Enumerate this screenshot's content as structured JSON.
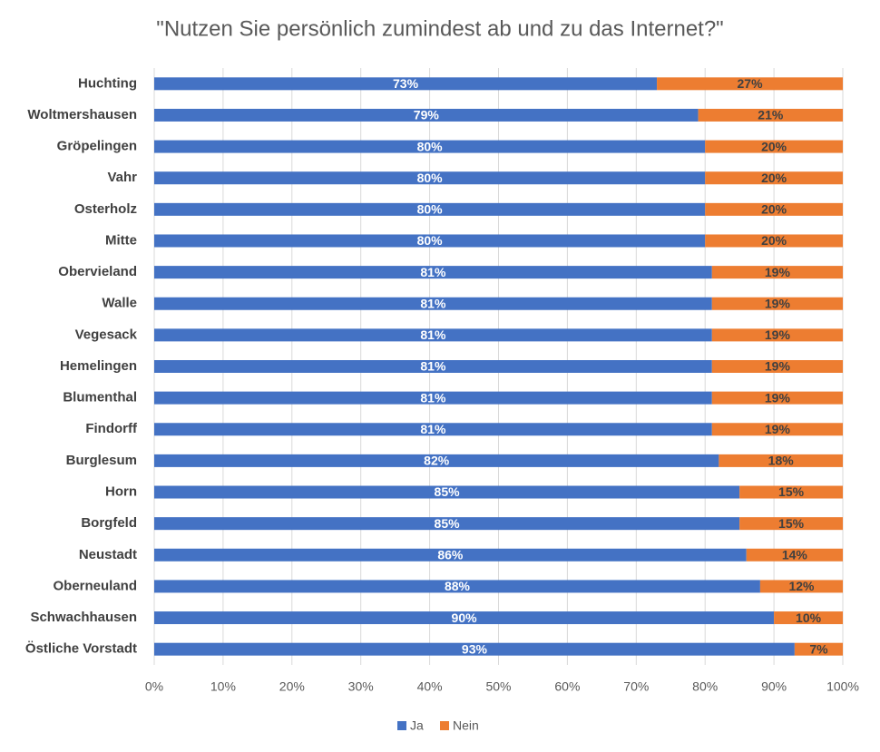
{
  "chart_data": {
    "type": "stacked-bar-horizontal",
    "title": "\"Nutzen Sie persönlich zumindest ab und zu das Internet?\"",
    "categories": [
      "Huchting",
      "Woltmershausen",
      "Gröpelingen",
      "Vahr",
      "Osterholz",
      "Mitte",
      "Obervieland",
      "Walle",
      "Vegesack",
      "Hemelingen",
      "Blumenthal",
      "Findorff",
      "Burglesum",
      "Horn",
      "Borgfeld",
      "Neustadt",
      "Oberneuland",
      "Schwachhausen",
      "Östliche Vorstadt"
    ],
    "series": [
      {
        "name": "Ja",
        "color": "#4472c4",
        "values": [
          73,
          79,
          80,
          80,
          80,
          80,
          81,
          81,
          81,
          81,
          81,
          81,
          82,
          85,
          85,
          86,
          88,
          90,
          93
        ],
        "value_labels": [
          "73%",
          "79%",
          "80%",
          "80%",
          "80%",
          "80%",
          "81%",
          "81%",
          "81%",
          "81%",
          "81%",
          "81%",
          "82%",
          "85%",
          "85%",
          "86%",
          "88%",
          "90%",
          "93%"
        ]
      },
      {
        "name": "Nein",
        "color": "#ed7d31",
        "values": [
          27,
          21,
          20,
          20,
          20,
          20,
          19,
          19,
          19,
          19,
          19,
          19,
          18,
          15,
          15,
          14,
          12,
          10,
          7
        ],
        "value_labels": [
          "27%",
          "21%",
          "20%",
          "20%",
          "20%",
          "20%",
          "19%",
          "19%",
          "19%",
          "19%",
          "19%",
          "19%",
          "18%",
          "15%",
          "15%",
          "14%",
          "12%",
          "10%",
          "7%"
        ]
      }
    ],
    "xlim": [
      0,
      100
    ],
    "xticks": [
      {
        "value": 0,
        "label": "0%"
      },
      {
        "value": 10,
        "label": "10%"
      },
      {
        "value": 20,
        "label": "20%"
      },
      {
        "value": 30,
        "label": "30%"
      },
      {
        "value": 40,
        "label": "40%"
      },
      {
        "value": 50,
        "label": "50%"
      },
      {
        "value": 60,
        "label": "60%"
      },
      {
        "value": 70,
        "label": "70%"
      },
      {
        "value": 80,
        "label": "80%"
      },
      {
        "value": 90,
        "label": "90%"
      },
      {
        "value": 100,
        "label": "100%"
      }
    ],
    "grid": true,
    "legend": "bottom"
  }
}
